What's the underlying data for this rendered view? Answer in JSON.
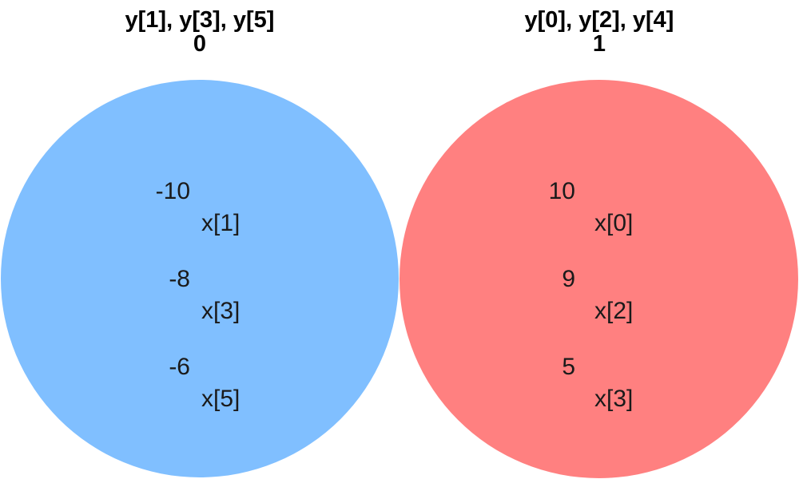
{
  "sets": [
    {
      "heading_line1": "y[1], y[3], y[5]",
      "heading_line2": "0",
      "color": "#80bfff",
      "items": [
        {
          "value": "-10",
          "var": "x[1]"
        },
        {
          "value": "-8",
          "var": "x[3]"
        },
        {
          "value": "-6",
          "var": "x[5]"
        }
      ]
    },
    {
      "heading_line1": "y[0], y[2], y[4]",
      "heading_line2": "1",
      "color": "#ff8080",
      "items": [
        {
          "value": "10",
          "var": "x[0]"
        },
        {
          "value": "9",
          "var": "x[2]"
        },
        {
          "value": "5",
          "var": "x[3]"
        }
      ]
    }
  ]
}
